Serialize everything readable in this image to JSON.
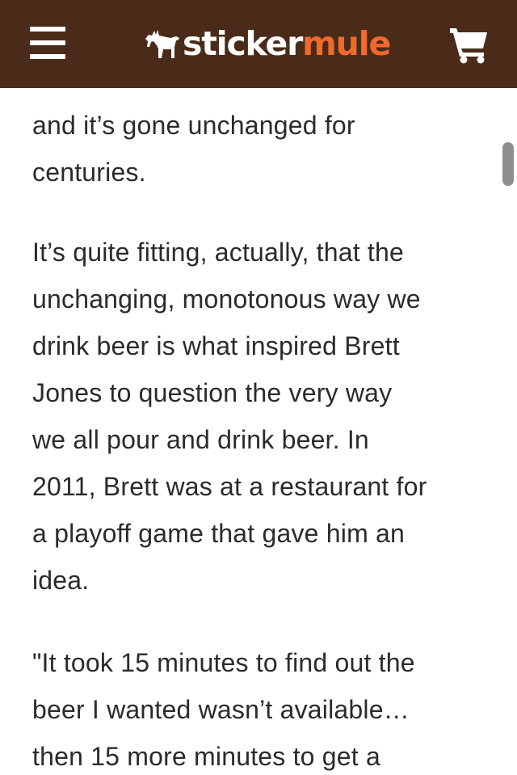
{
  "header": {
    "brand_part1": "sticker",
    "brand_part2": "mule",
    "menu_icon": "hamburger-menu-icon",
    "logo_icon": "mule-icon",
    "cart_icon": "shopping-cart-icon",
    "colors": {
      "background": "#4a2b1a",
      "brand_white": "#ffffff",
      "brand_orange": "#f16a2d"
    }
  },
  "article": {
    "paragraph1": {
      "lines": [
        "and it’s gone unchanged for",
        "centuries."
      ]
    },
    "paragraph2": {
      "lines": [
        "It’s quite fitting, actually, that the",
        "unchanging, monotonous way we",
        "drink beer is what inspired Brett",
        "Jones to question the very way",
        "we all pour and drink beer. In",
        "2011, Brett was at a restaurant for",
        "a playoff game that gave him an",
        "idea."
      ]
    },
    "paragraph3": {
      "lines": [
        "\"It took 15 minutes to find out the",
        "beer I wanted wasn’t available…",
        "then 15 more minutes to get a"
      ]
    }
  }
}
